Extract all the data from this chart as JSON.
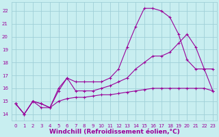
{
  "background_color": "#c8eef0",
  "grid_color": "#a0d0d8",
  "line_color": "#990099",
  "xlabel": "Windchill (Refroidissement éolien,°C)",
  "xlim": [
    -0.5,
    23.5
  ],
  "ylim": [
    13.5,
    22.7
  ],
  "yticks": [
    14,
    15,
    16,
    17,
    18,
    19,
    20,
    21,
    22
  ],
  "xticks": [
    0,
    1,
    2,
    3,
    4,
    5,
    6,
    7,
    8,
    9,
    10,
    11,
    12,
    13,
    14,
    15,
    16,
    17,
    18,
    19,
    20,
    21,
    22,
    23
  ],
  "series1_x": [
    0,
    1,
    2,
    3,
    4,
    5,
    6,
    7,
    8,
    9,
    10,
    11,
    12,
    13,
    14,
    15,
    16,
    17,
    18,
    19,
    20,
    21,
    22,
    23
  ],
  "series1_y": [
    14.8,
    14.0,
    15.0,
    14.8,
    14.5,
    15.0,
    15.2,
    15.3,
    15.3,
    15.4,
    15.5,
    15.5,
    15.6,
    15.7,
    15.8,
    15.9,
    16.0,
    16.0,
    16.0,
    16.0,
    16.0,
    16.0,
    16.0,
    15.8
  ],
  "series2_x": [
    0,
    1,
    2,
    3,
    4,
    5,
    6,
    7,
    8,
    9,
    10,
    11,
    12,
    13,
    14,
    15,
    16,
    17,
    18,
    19,
    20,
    21,
    22,
    23
  ],
  "series2_y": [
    14.8,
    14.0,
    15.0,
    14.5,
    14.5,
    15.8,
    16.8,
    15.8,
    15.8,
    15.8,
    16.0,
    16.2,
    16.5,
    16.8,
    17.5,
    18.0,
    18.5,
    18.5,
    18.8,
    19.5,
    20.2,
    19.2,
    17.5,
    15.8
  ],
  "series3_x": [
    0,
    1,
    2,
    3,
    4,
    5,
    6,
    7,
    8,
    9,
    10,
    11,
    12,
    13,
    14,
    15,
    16,
    17,
    18,
    19,
    20,
    21,
    22,
    23
  ],
  "series3_y": [
    14.8,
    14.0,
    15.0,
    14.8,
    14.5,
    16.0,
    16.8,
    16.5,
    16.5,
    16.5,
    16.5,
    16.8,
    17.5,
    19.2,
    20.8,
    22.2,
    22.2,
    22.0,
    21.5,
    20.2,
    18.2,
    17.5,
    17.5,
    17.5
  ],
  "font_color": "#990099",
  "tick_fontsize": 5.0,
  "xlabel_fontsize": 6.5
}
